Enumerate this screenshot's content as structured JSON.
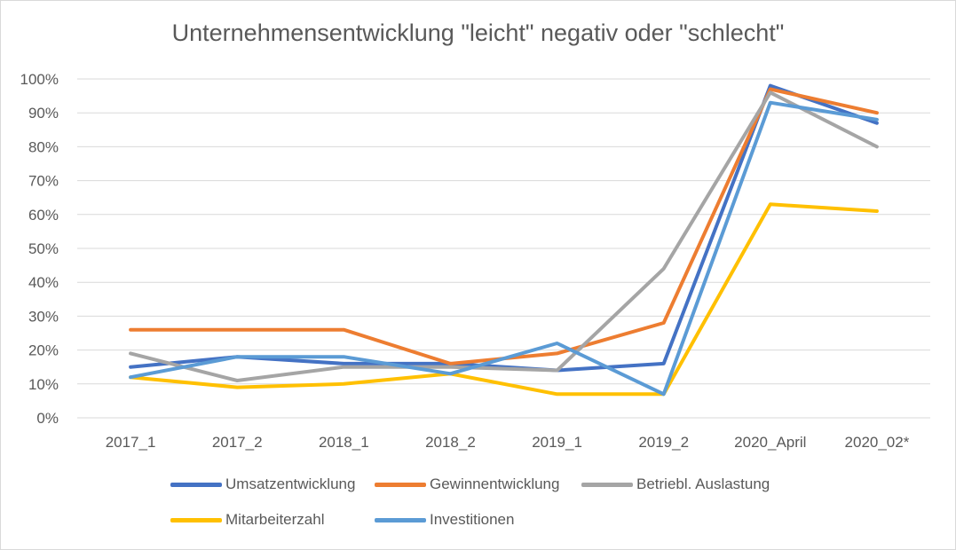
{
  "chart_data": {
    "type": "line",
    "title": "Unternehmensentwicklung \"leicht\" negativ oder \"schlecht\"",
    "categories": [
      "2017_1",
      "2017_2",
      "2018_1",
      "2018_2",
      "2019_1",
      "2019_2",
      "2020_April",
      "2020_02*"
    ],
    "y_ticks": [
      "0%",
      "10%",
      "20%",
      "30%",
      "40%",
      "50%",
      "60%",
      "70%",
      "80%",
      "90%",
      "100%"
    ],
    "ylim": [
      0,
      100
    ],
    "grid": true,
    "legend_position": "bottom",
    "series": [
      {
        "name": "Umsatzentwicklung",
        "color": "#4472c4",
        "values": [
          15,
          18,
          16,
          16,
          14,
          16,
          98,
          87
        ]
      },
      {
        "name": "Gewinnentwicklung",
        "color": "#ed7d31",
        "values": [
          26,
          26,
          26,
          16,
          19,
          28,
          97,
          90
        ]
      },
      {
        "name": "Betriebl. Auslastung",
        "color": "#a5a5a5",
        "values": [
          19,
          11,
          15,
          15,
          14,
          44,
          96,
          80
        ]
      },
      {
        "name": "Mitarbeiterzahl",
        "color": "#ffc000",
        "values": [
          12,
          9,
          10,
          13,
          7,
          7,
          63,
          61
        ]
      },
      {
        "name": "Investitionen",
        "color": "#5b9bd5",
        "values": [
          12,
          18,
          18,
          13,
          22,
          7,
          93,
          88
        ]
      }
    ]
  }
}
